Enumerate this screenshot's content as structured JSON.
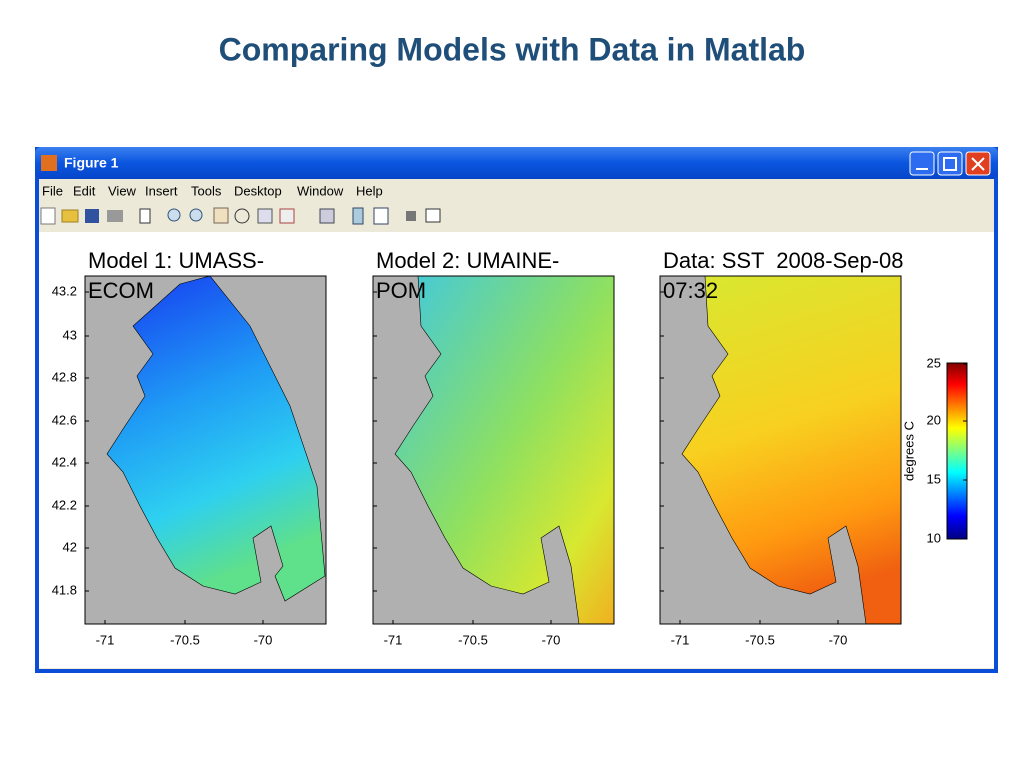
{
  "title": "Comparing Models with Data in Matlab",
  "window": {
    "title": "Figure 1",
    "menu": [
      "File",
      "Edit",
      "View",
      "Insert",
      "Tools",
      "Desktop",
      "Window",
      "Help"
    ]
  },
  "panels": [
    {
      "title_lines": [
        "Model 1: UMASS-",
        "ECOM"
      ],
      "xticks": [
        "-71",
        "-70.5",
        "-70"
      ]
    },
    {
      "title_lines": [
        "Model 2: UMAINE-",
        "POM"
      ],
      "xticks": [
        "-71",
        "-70.5",
        "-70"
      ]
    },
    {
      "title_lines": [
        "Data: SST  2008-Sep-08",
        "07:32"
      ],
      "xticks": [
        "-71",
        "-70.5",
        "-70"
      ]
    }
  ],
  "yticks": [
    "43.2",
    "43",
    "42.8",
    "42.6",
    "42.4",
    "42.2",
    "42",
    "41.8"
  ],
  "colorbar": {
    "ticks": [
      "25",
      "20",
      "15",
      "10"
    ],
    "label": "degrees C"
  }
}
